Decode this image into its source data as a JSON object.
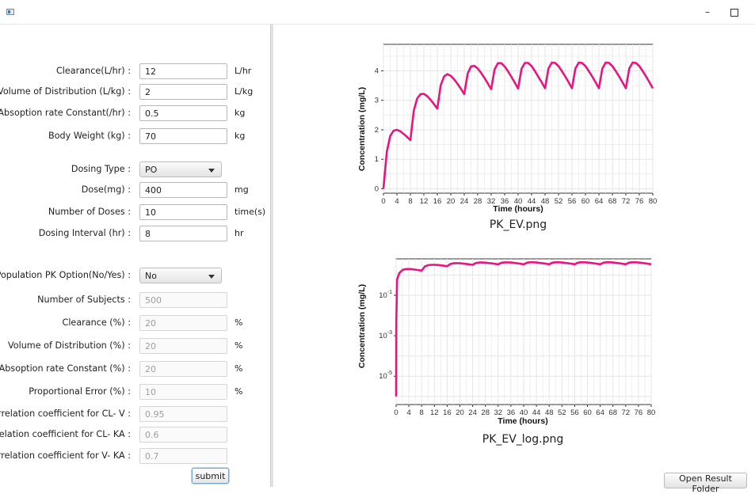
{
  "window": {
    "minimize_glyph": "–"
  },
  "form": {
    "fields": [
      {
        "label": "Clearance(L/hr)  :",
        "value": "12",
        "unit": "L/hr",
        "disabled": false
      },
      {
        "label": "Volume of Distribution (L/kg)  :",
        "value": "2",
        "unit": "L/kg",
        "disabled": false
      },
      {
        "label": "Absoption rate Constant(/hr) :",
        "value": "0.5",
        "unit": "kg",
        "disabled": false
      },
      {
        "label": "Body Weight (kg)  :",
        "value": "70",
        "unit": "kg",
        "disabled": false
      }
    ],
    "dosing_type": {
      "label": "Dosing Type  :",
      "value": "PO"
    },
    "dose_fields": [
      {
        "label": "Dose(mg) :",
        "value": "400",
        "unit": "mg"
      },
      {
        "label": "Number of Doses :",
        "value": "10",
        "unit": "time(s)"
      },
      {
        "label": "Dosing Interval (hr) :",
        "value": "8",
        "unit": "hr"
      }
    ],
    "pop_option": {
      "label": "Population PK Option(No/Yes) :",
      "value": "No"
    },
    "pop_fields": [
      {
        "label": "Number of Subjects :",
        "value": "500",
        "unit": ""
      },
      {
        "label": "Clearance (%) :",
        "value": "20",
        "unit": "%"
      },
      {
        "label": "Volume of Distribution (%) :",
        "value": "20",
        "unit": "%"
      },
      {
        "label": "Absoption rate Constant (%) :",
        "value": "20",
        "unit": "%"
      },
      {
        "label": "Proportional Error (%) :",
        "value": "10",
        "unit": "%"
      },
      {
        "label": "Correlation coefficient for CL- V :",
        "value": "0.95",
        "unit": ""
      },
      {
        "label": "Correlation coefficient for CL- KA :",
        "value": "0.6",
        "unit": ""
      },
      {
        "label": "Correlation coefficient for V- KA :",
        "value": "0.7",
        "unit": ""
      }
    ],
    "submit_label": "submit"
  },
  "results": {
    "open_folder_label": "Open Result Folder"
  },
  "colors": {
    "series": "#e8157f",
    "grid": "#e6e6e6",
    "accent": "#7fa8c8"
  },
  "chart_data": [
    {
      "type": "line",
      "caption": "PK_EV.png",
      "xlabel": "Time (hours)",
      "ylabel": "Concentration (mg/L)",
      "xlim": [
        0,
        80
      ],
      "ylim": [
        -0.15,
        4.9
      ],
      "xticks": [
        "0",
        "4",
        "8",
        "12",
        "16",
        "20",
        "24",
        "28",
        "32",
        "36",
        "40",
        "44",
        "48",
        "52",
        "56",
        "60",
        "64",
        "68",
        "72",
        "76",
        "80"
      ],
      "yticks": [
        "0",
        "1",
        "2",
        "3",
        "4"
      ],
      "series": [
        {
          "x": [
            0,
            1,
            2,
            3,
            4,
            5,
            6,
            7,
            8,
            9,
            10,
            11,
            12,
            13,
            14,
            15,
            16,
            17,
            18,
            19,
            20,
            21,
            22,
            23,
            24,
            25,
            26,
            27,
            28,
            29,
            30,
            31,
            32,
            33,
            34,
            35,
            36,
            37,
            38,
            39,
            40,
            41,
            42,
            43,
            44,
            45,
            46,
            47,
            48,
            49,
            50,
            51,
            52,
            53,
            54,
            55,
            56,
            57,
            58,
            59,
            60,
            61,
            62,
            63,
            64,
            65,
            66,
            67,
            68,
            69,
            70,
            71,
            72,
            73,
            74,
            75,
            76,
            77,
            78,
            79,
            80
          ],
          "y": [
            0,
            1.26,
            1.79,
            1.97,
            2.0,
            1.95,
            1.86,
            1.76,
            1.65,
            2.65,
            3.06,
            3.21,
            3.22,
            3.14,
            3.02,
            2.87,
            2.72,
            3.51,
            3.81,
            3.89,
            3.83,
            3.71,
            3.56,
            3.39,
            3.21,
            3.91,
            4.15,
            4.17,
            4.08,
            3.93,
            3.76,
            3.57,
            3.38,
            4.05,
            4.26,
            4.26,
            4.15,
            3.98,
            3.8,
            3.6,
            3.4,
            4.07,
            4.27,
            4.27,
            4.16,
            3.99,
            3.8,
            3.61,
            3.41,
            4.08,
            4.28,
            4.27,
            4.16,
            3.99,
            3.81,
            3.61,
            3.41,
            4.08,
            4.28,
            4.27,
            4.16,
            3.99,
            3.81,
            3.61,
            3.41,
            4.08,
            4.28,
            4.27,
            4.16,
            3.99,
            3.81,
            3.61,
            3.41,
            4.08,
            4.28,
            4.27,
            4.16,
            3.99,
            3.81,
            3.61,
            3.41
          ]
        }
      ]
    },
    {
      "type": "line",
      "caption": "PK_EV_log.png",
      "xlabel": "Time (hours)",
      "ylabel": "Concentration (mg/L)",
      "xlim": [
        0,
        80
      ],
      "ylog": true,
      "ylim_log10": [
        -6.4,
        0.8
      ],
      "xticks": [
        "0",
        "4",
        "8",
        "12",
        "16",
        "20",
        "24",
        "28",
        "32",
        "36",
        "40",
        "44",
        "48",
        "52",
        "56",
        "60",
        "64",
        "68",
        "72",
        "76",
        "80"
      ],
      "yticks": [
        {
          "base": "10",
          "exp": "-5",
          "log10": -5
        },
        {
          "base": "10",
          "exp": "-3",
          "log10": -3
        },
        {
          "base": "10",
          "exp": "-1",
          "log10": -1
        }
      ],
      "series": [
        {
          "x": [
            0,
            0.05,
            0.3,
            1,
            2,
            3,
            4,
            5,
            6,
            7,
            8,
            9,
            10,
            11,
            12,
            13,
            14,
            15,
            16,
            17,
            18,
            19,
            20,
            21,
            22,
            23,
            24,
            25,
            26,
            27,
            28,
            29,
            30,
            31,
            32,
            33,
            34,
            35,
            36,
            37,
            38,
            39,
            40,
            41,
            42,
            43,
            44,
            45,
            46,
            47,
            48,
            49,
            50,
            51,
            52,
            53,
            54,
            55,
            56,
            57,
            58,
            59,
            60,
            61,
            62,
            63,
            64,
            65,
            66,
            67,
            68,
            69,
            70,
            71,
            72,
            73,
            74,
            75,
            76,
            77,
            78,
            79,
            80
          ],
          "y": [
            1e-06,
            0.004,
            0.6,
            1.26,
            1.79,
            1.97,
            2.0,
            1.95,
            1.86,
            1.76,
            1.65,
            2.65,
            3.06,
            3.21,
            3.22,
            3.14,
            3.02,
            2.87,
            2.72,
            3.51,
            3.81,
            3.89,
            3.83,
            3.71,
            3.56,
            3.39,
            3.21,
            3.91,
            4.15,
            4.17,
            4.08,
            3.93,
            3.76,
            3.57,
            3.38,
            4.05,
            4.26,
            4.26,
            4.15,
            3.98,
            3.8,
            3.6,
            3.4,
            4.07,
            4.27,
            4.27,
            4.16,
            3.99,
            3.8,
            3.61,
            3.41,
            4.08,
            4.28,
            4.27,
            4.16,
            3.99,
            3.81,
            3.61,
            3.41,
            4.08,
            4.28,
            4.27,
            4.16,
            3.99,
            3.81,
            3.61,
            3.41,
            4.08,
            4.28,
            4.27,
            4.16,
            3.99,
            3.81,
            3.61,
            3.41,
            4.08,
            4.28,
            4.27,
            4.16,
            3.99,
            3.81,
            3.61,
            3.41
          ]
        }
      ]
    }
  ]
}
